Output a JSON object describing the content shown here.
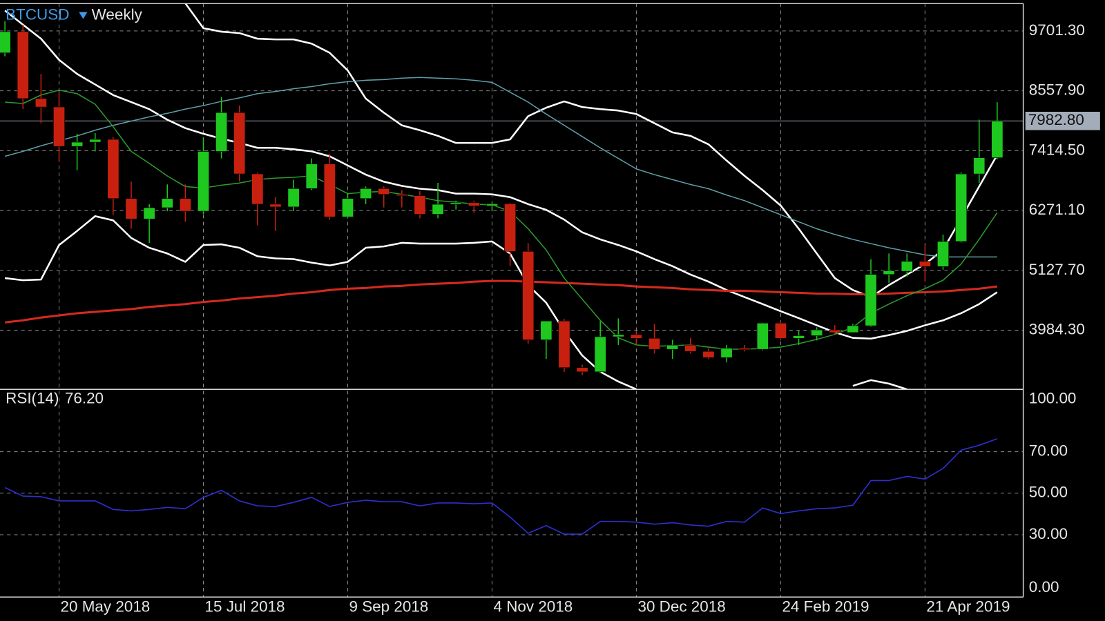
{
  "chart_data": [
    {
      "type": "candlestick",
      "symbol": "BTCUSD",
      "period": "Weekly",
      "categories": [
        null,
        null,
        null,
        "20 May 2018",
        null,
        null,
        null,
        null,
        null,
        null,
        null,
        "15 Jul 2018",
        null,
        null,
        null,
        null,
        null,
        null,
        null,
        "9 Sep 2018",
        null,
        null,
        null,
        null,
        null,
        null,
        null,
        "4 Nov 2018",
        null,
        null,
        null,
        null,
        null,
        null,
        null,
        "30 Dec 2018",
        null,
        null,
        null,
        null,
        null,
        null,
        null,
        "24 Feb 2019",
        null,
        null,
        null,
        null,
        null,
        null,
        null,
        "21 Apr 2019",
        null,
        null,
        null,
        null
      ],
      "open": [
        9284,
        9688,
        8410,
        8249,
        7496,
        7577,
        7630,
        6500,
        6110,
        6325,
        6500,
        6258,
        7400,
        8141,
        6971,
        6392,
        6340,
        6690,
        7160,
        6150,
        6500,
        6690,
        6580,
        6555,
        6200,
        6390,
        6420,
        6360,
        6400,
        5490,
        3800,
        4160,
        3270,
        3190,
        3860,
        3900,
        3830,
        3620,
        3700,
        3580,
        3460,
        3640,
        3620,
        4120,
        3830,
        3880,
        3990,
        3940,
        4070,
        5050,
        5110,
        5300,
        5200,
        5680,
        6970,
        7280
      ],
      "high": [
        9890,
        9822,
        8881,
        8545,
        7738,
        7750,
        7670,
        6824,
        6392,
        6770,
        6770,
        7670,
        8437,
        8276,
        7000,
        6527,
        6860,
        7267,
        7360,
        6600,
        6730,
        6730,
        6660,
        6640,
        6800,
        6460,
        6460,
        6420,
        6420,
        5650,
        4160,
        4200,
        3325,
        4160,
        4210,
        3970,
        4106,
        3800,
        3837,
        3640,
        3703,
        3703,
        4130,
        4150,
        3972,
        4040,
        4080,
        4106,
        5340,
        5450,
        5450,
        5600,
        5810,
        7000,
        8007,
        8340
      ],
      "low": [
        9217,
        8208,
        7939,
        7200,
        7038,
        7400,
        6190,
        5922,
        5653,
        6258,
        6056,
        6200,
        7267,
        6824,
        5989,
        5880,
        6258,
        6662,
        6095,
        6123,
        6392,
        6330,
        6330,
        6123,
        6123,
        6290,
        6230,
        6258,
        5210,
        3730,
        3434,
        3190,
        3125,
        3164,
        3703,
        3703,
        3540,
        3434,
        3540,
        3434,
        3370,
        3580,
        3600,
        3790,
        3703,
        3790,
        3900,
        3940,
        4050,
        4890,
        5010,
        4913,
        5140,
        5660,
        6796,
        7250
      ],
      "close": [
        9688,
        8410,
        8249,
        7496,
        7577,
        7630,
        6500,
        6110,
        6325,
        6500,
        6258,
        7400,
        8141,
        6971,
        6392,
        6340,
        6690,
        7160,
        6150,
        6500,
        6690,
        6580,
        6555,
        6200,
        6390,
        6420,
        6360,
        6400,
        5490,
        3800,
        4160,
        3270,
        3190,
        3860,
        3900,
        3830,
        3620,
        3700,
        3580,
        3460,
        3640,
        3620,
        4120,
        3830,
        3880,
        3990,
        3940,
        4070,
        5050,
        5120,
        5300,
        5200,
        5680,
        6970,
        7280,
        7982.8
      ],
      "up_color": "#1ec81e",
      "down_color": "#c8200f",
      "overlays": [
        {
          "color": "#ffffff",
          "line_width": 2.5,
          "values": [
            null,
            null,
            null,
            null,
            null,
            null,
            null,
            null,
            null,
            null,
            10230,
            9755,
            9688,
            9661,
            9553,
            9540,
            9540,
            9459,
            9284,
            8948,
            8410,
            8141,
            7899,
            7805,
            7697,
            7563,
            7563,
            7563,
            7630,
            8074,
            8235,
            8356,
            8249,
            8208,
            8181,
            8114,
            7939,
            7764,
            7697,
            7536,
            7226,
            6931,
            6661,
            6366,
            5922,
            5451,
            4980,
            4752,
            4617,
            4846,
            5047,
            5249,
            5518,
            6123,
            6729,
            7334
          ]
        },
        {
          "color": "#ffffff",
          "line_width": 2.5,
          "values": [
            10091,
            9822,
            9553,
            9150,
            8881,
            8679,
            8477,
            8343,
            8208,
            8006,
            7845,
            7737,
            7643,
            7563,
            7468,
            7468,
            7442,
            7401,
            7307,
            7132,
            6957,
            6823,
            6742,
            6688,
            6661,
            6594,
            6594,
            6581,
            6527,
            6393,
            6285,
            6097,
            5854,
            5720,
            5612,
            5491,
            5343,
            5209,
            5047,
            4913,
            4752,
            4617,
            4483,
            4348,
            4214,
            4079,
            3945,
            3837,
            3824,
            3891,
            3971,
            4079,
            4173,
            4308,
            4483,
            4711
          ]
        },
        {
          "color": "#ffffff",
          "line_width": 2.5,
          "values": [
            4980,
            4940,
            4953,
            5612,
            5881,
            6164,
            6083,
            5747,
            5559,
            5451,
            5290,
            5612,
            5626,
            5559,
            5397,
            5357,
            5343,
            5276,
            5222,
            5290,
            5559,
            5585,
            5653,
            5639,
            5639,
            5639,
            5653,
            5680,
            5451,
            4846,
            4510,
            3971,
            3501,
            3191,
            3003,
            2855,
            null,
            null,
            null,
            null,
            null,
            null,
            null,
            null,
            null,
            null,
            null,
            2922,
            3030,
            2963,
            2855,
            null,
            null,
            null,
            null,
            null
          ]
        },
        {
          "color": "#d42a1f",
          "line_width": 3,
          "values": [
            4133,
            4173,
            4227,
            4267,
            4308,
            4335,
            4362,
            4388,
            4429,
            4456,
            4483,
            4523,
            4550,
            4590,
            4617,
            4644,
            4684,
            4711,
            4752,
            4778,
            4792,
            4819,
            4832,
            4859,
            4873,
            4886,
            4913,
            4926,
            4926,
            4913,
            4900,
            4886,
            4873,
            4859,
            4846,
            4819,
            4805,
            4792,
            4765,
            4752,
            4738,
            4738,
            4725,
            4711,
            4698,
            4684,
            4684,
            4671,
            4671,
            4684,
            4698,
            4711,
            4725,
            4752,
            4778,
            4819
          ]
        },
        {
          "color": "#5e9ea8",
          "line_width": 1.5,
          "values": [
            7307,
            7401,
            7509,
            7603,
            7697,
            7805,
            7899,
            7980,
            8060,
            8128,
            8208,
            8275,
            8356,
            8423,
            8504,
            8544,
            8598,
            8639,
            8692,
            8733,
            8760,
            8773,
            8800,
            8813,
            8800,
            8787,
            8760,
            8719,
            8531,
            8343,
            8114,
            7899,
            7684,
            7468,
            7267,
            7065,
            6957,
            6863,
            6769,
            6688,
            6567,
            6460,
            6325,
            6191,
            6056,
            5922,
            5814,
            5720,
            5639,
            5559,
            5491,
            5424,
            5384,
            5384,
            5384,
            5384
          ]
        },
        {
          "color": "#2e9a2e",
          "line_width": 1.5,
          "values": [
            8343,
            8316,
            8477,
            8571,
            8504,
            8302,
            7872,
            7401,
            7173,
            6931,
            6729,
            6702,
            6756,
            6796,
            6863,
            6890,
            6904,
            6931,
            6769,
            6594,
            6621,
            6635,
            6581,
            6527,
            6460,
            6433,
            6393,
            6379,
            6258,
            5922,
            5518,
            4980,
            4577,
            4173,
            3837,
            3703,
            3676,
            3689,
            3703,
            3662,
            3622,
            3622,
            3635,
            3662,
            3729,
            3810,
            3904,
            4039,
            4308,
            4483,
            4644,
            4778,
            4940,
            5249,
            5720,
            6231
          ]
        }
      ],
      "last_price_label": "7982.80",
      "ylim": [
        2854.3,
        10225.9
      ],
      "yticks": [
        {
          "value": 3984.3,
          "label": "3984.30"
        },
        {
          "value": 5127.7,
          "label": "5127.70"
        },
        {
          "value": 6271.1,
          "label": "6271.10"
        },
        {
          "value": 7414.5,
          "label": "7414.50"
        },
        {
          "value": 8557.9,
          "label": "8557.90"
        },
        {
          "value": 9701.3,
          "label": "9701.30"
        }
      ],
      "grid": true
    },
    {
      "type": "line",
      "name": "RSI(14)",
      "value_label": "76.20",
      "color": "#2f2fd0",
      "values": [
        52.7,
        48.6,
        48.3,
        46.3,
        46.3,
        46.3,
        42.2,
        41.5,
        42.2,
        43.2,
        42.5,
        48.0,
        51.4,
        46.3,
        43.9,
        43.6,
        45.6,
        48.0,
        43.6,
        45.6,
        46.6,
        45.9,
        45.9,
        43.9,
        45.3,
        45.3,
        44.9,
        45.3,
        38.5,
        30.7,
        34.4,
        30.3,
        30.3,
        36.4,
        36.4,
        36.1,
        35.1,
        35.8,
        34.7,
        34.1,
        36.4,
        36.1,
        42.9,
        40.2,
        41.5,
        42.5,
        42.9,
        44.2,
        56.1,
        56.1,
        58.1,
        56.8,
        61.9,
        70.7,
        73.1,
        76.2
      ],
      "ylim": [
        0,
        100
      ],
      "yticks": [
        {
          "value": 0,
          "label": "0.00"
        },
        {
          "value": 30,
          "label": "30.00"
        },
        {
          "value": 50,
          "label": "50.00"
        },
        {
          "value": 70,
          "label": "70.00"
        },
        {
          "value": 100,
          "label": "100.00"
        }
      ],
      "grid": true
    }
  ]
}
